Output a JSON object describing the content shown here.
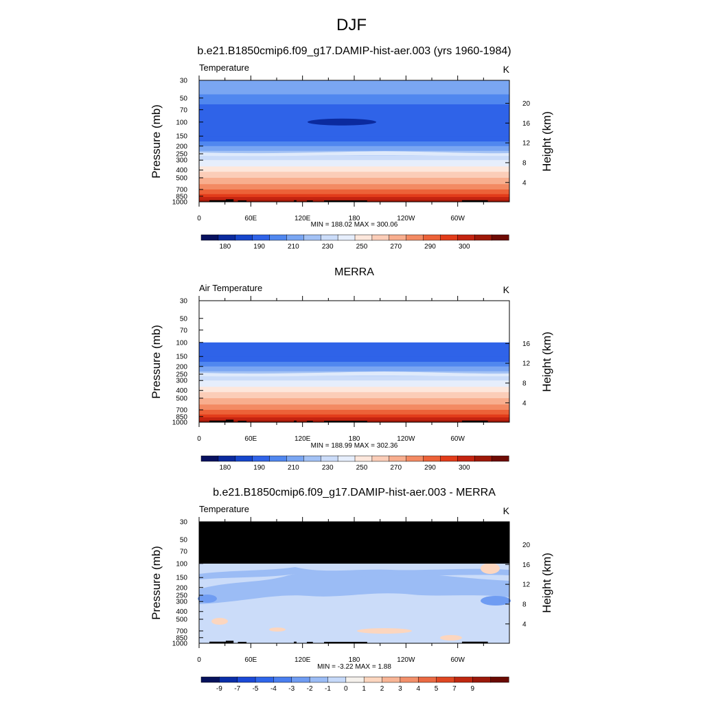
{
  "page": {
    "title": "DJF"
  },
  "colors": {
    "temp_palette": [
      "#08115f",
      "#0b2a9e",
      "#1646cc",
      "#2f63e8",
      "#5087ef",
      "#7aa6f2",
      "#a3c2f5",
      "#cbdcf9",
      "#e6eefc",
      "#fde7dc",
      "#fbcdb8",
      "#f8ae8e",
      "#f38a63",
      "#ec6238",
      "#e23c1a",
      "#c42410",
      "#9e1808",
      "#6e0b04"
    ],
    "diff_palette": [
      "#06125c",
      "#0a2ea8",
      "#1b49d6",
      "#2f66ea",
      "#4a7fef",
      "#6f9cf2",
      "#9bbcf5",
      "#c6d9f9",
      "#f5f1ec",
      "#fcd6bf",
      "#f8b596",
      "#f2906b",
      "#ea6a43",
      "#df4722",
      "#bf2810",
      "#9b180a",
      "#6a0a03"
    ]
  },
  "chart_data": [
    {
      "type": "heatmap",
      "name": "model",
      "title": "b.e21.B1850cmip6.f09_g17.DAMIP-hist-aer.003 (yrs 1960-1984)",
      "left_label": "Temperature",
      "units": "K",
      "ylabel": "Pressure (mb)",
      "y2label": "Height (km)",
      "x_ticks": [
        "0",
        "60E",
        "120E",
        "180",
        "120W",
        "60W"
      ],
      "y_ticks": [
        "30",
        "50",
        "70",
        "100",
        "150",
        "200",
        "250",
        "300",
        "400",
        "500",
        "700",
        "850",
        "1000"
      ],
      "y2_ticks": [
        "20",
        "16",
        "12",
        "8",
        "4"
      ],
      "minmax": "MIN = 188.02  MAX = 300.06",
      "colorbar_labels": [
        "180",
        "190",
        "210",
        "230",
        "250",
        "270",
        "290",
        "300"
      ],
      "data_range": [
        188.02,
        300.06
      ],
      "top_pressure": 30
    },
    {
      "type": "heatmap",
      "name": "obs",
      "title": "MERRA",
      "left_label": "Air Temperature",
      "units": "K",
      "ylabel": "Pressure (mb)",
      "y2label": "Height (km)",
      "x_ticks": [
        "0",
        "60E",
        "120E",
        "180",
        "120W",
        "60W"
      ],
      "y_ticks": [
        "30",
        "50",
        "70",
        "100",
        "150",
        "200",
        "250",
        "300",
        "400",
        "500",
        "700",
        "850",
        "1000"
      ],
      "y2_ticks": [
        "16",
        "12",
        "8",
        "4"
      ],
      "minmax": "MIN = 188.99  MAX = 302.36",
      "colorbar_labels": [
        "180",
        "190",
        "210",
        "230",
        "250",
        "270",
        "290",
        "300"
      ],
      "data_range": [
        188.99,
        302.36
      ],
      "top_pressure": 100
    },
    {
      "type": "heatmap",
      "name": "diff",
      "title": "b.e21.B1850cmip6.f09_g17.DAMIP-hist-aer.003 - MERRA",
      "left_label": "Temperature",
      "units": "K",
      "ylabel": "Pressure (mb)",
      "y2label": "Height (km)",
      "x_ticks": [
        "0",
        "60E",
        "120E",
        "180",
        "120W",
        "60W"
      ],
      "y_ticks": [
        "30",
        "50",
        "70",
        "100",
        "150",
        "200",
        "250",
        "300",
        "400",
        "500",
        "700",
        "850",
        "1000"
      ],
      "y2_ticks": [
        "20",
        "16",
        "12",
        "8",
        "4"
      ],
      "minmax": "MIN =  -3.22  MAX =   1.88",
      "colorbar_labels": [
        "-9",
        "-7",
        "-5",
        "-4",
        "-3",
        "-2",
        "-1",
        "0",
        "1",
        "2",
        "3",
        "4",
        "5",
        "7",
        "9"
      ],
      "data_range": [
        -3.22,
        1.88
      ],
      "masked_above_pressure": 100
    }
  ]
}
